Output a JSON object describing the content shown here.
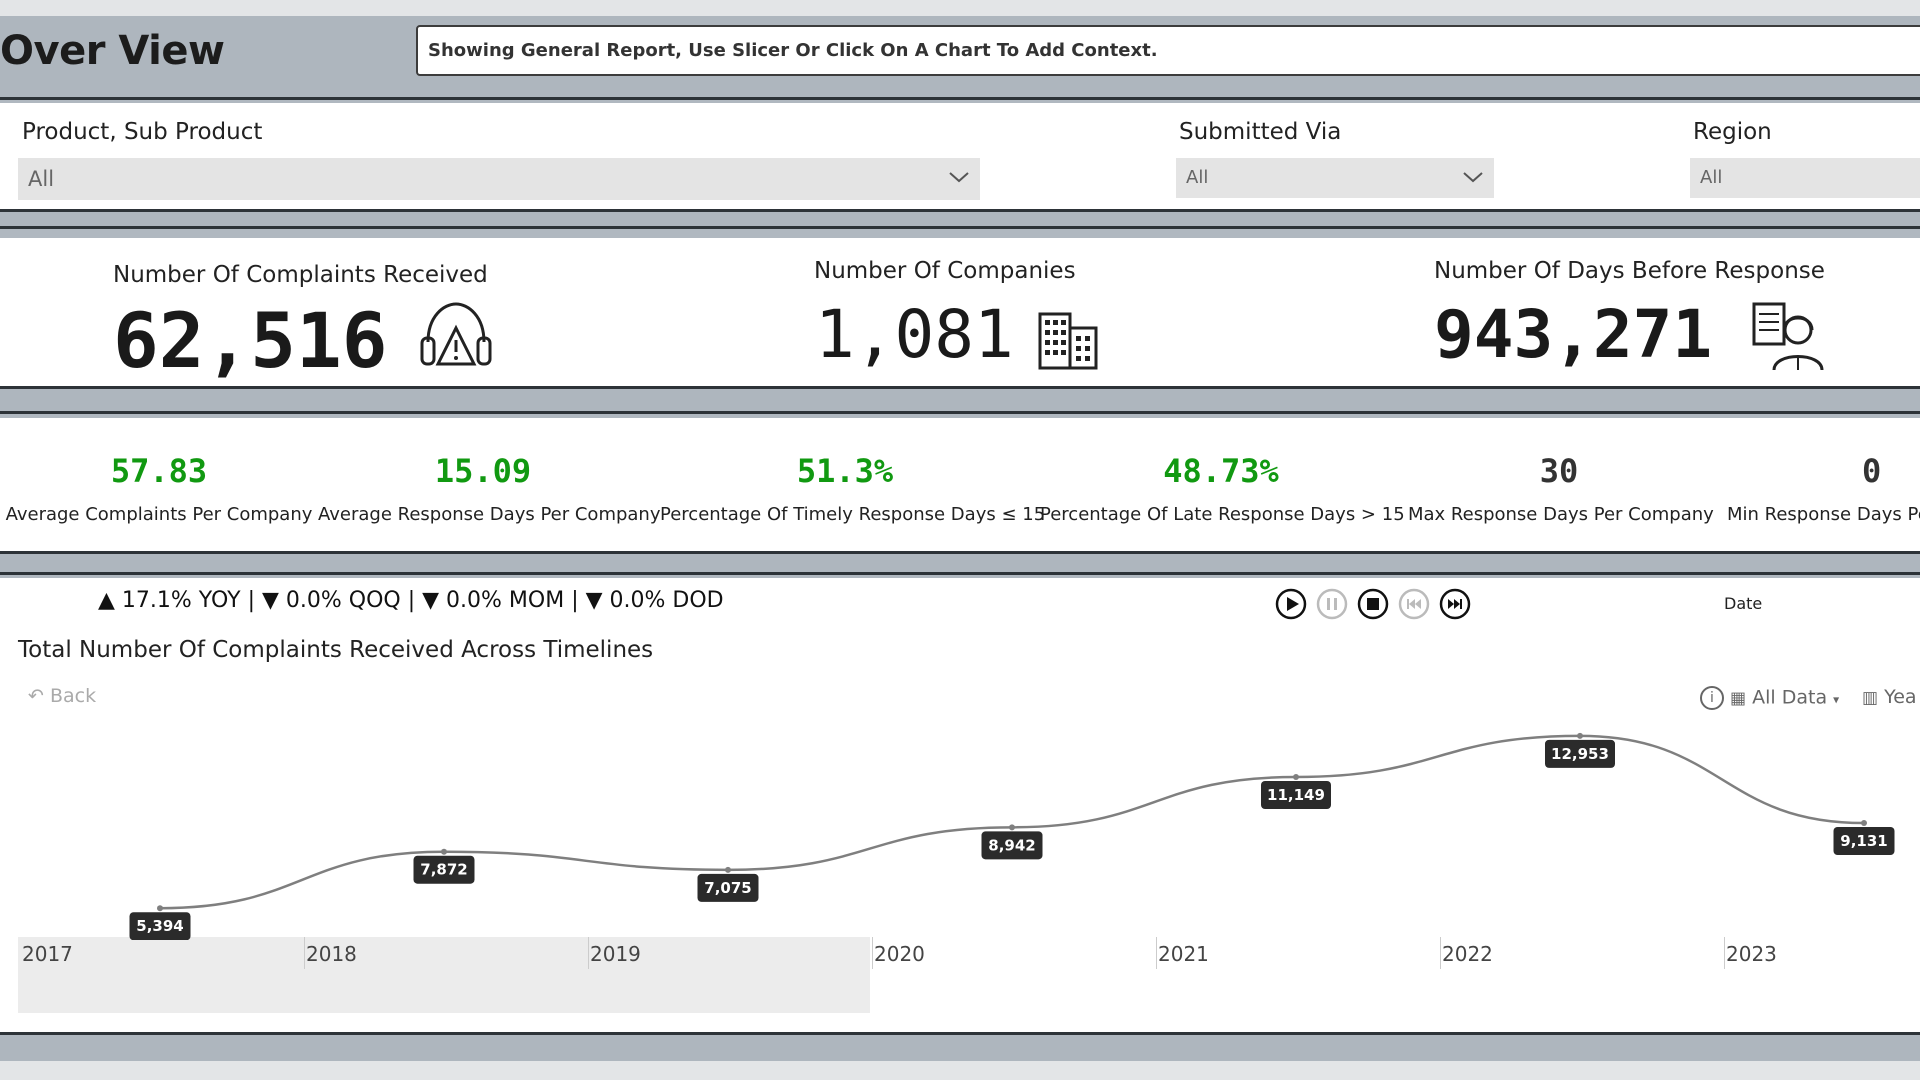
{
  "header": {
    "title": "Over View",
    "context_message": "Showing General Report, Use Slicer Or Click On A Chart To Add Context."
  },
  "slicers": [
    {
      "label": "Product, Sub Product",
      "value": "All"
    },
    {
      "label": "Submitted Via",
      "value": "All"
    },
    {
      "label": "Region",
      "value": "All"
    }
  ],
  "kpis": [
    {
      "label": "Number Of Complaints Received",
      "value": "62,516",
      "icon": "headset-warning-icon"
    },
    {
      "label": "Number Of Companies",
      "value": "1,081",
      "icon": "building-icon"
    },
    {
      "label": "Number Of Days Before Response",
      "value": "943,271",
      "icon": "support-agent-icon"
    }
  ],
  "metrics": [
    {
      "value": "57.83",
      "label": "Average Complaints Per Company",
      "color": "#119911"
    },
    {
      "value": "15.09",
      "label": "Average Response Days Per Company",
      "color": "#119911"
    },
    {
      "value": "51.3%",
      "label": "Percentage Of Timely Response Days ≤ 15",
      "color": "#119911"
    },
    {
      "value": "48.73%",
      "label": "Percentage Of Late Response Days > 15",
      "color": "#119911"
    },
    {
      "value": "30",
      "label": "Max Response Days Per Company",
      "color": "#333333"
    },
    {
      "value": "0",
      "label": "Min Response Days Pe",
      "color": "#333333"
    }
  ],
  "timeline": {
    "delta_text": "▲ 17.1% YOY | ▼ 0.0% QOQ | ▼ 0.0% MOM | ▼ 0.0% DOD",
    "date_label": "Date",
    "back_label": "Back",
    "all_data_label": "All Data",
    "period_label": "Yea",
    "controls": [
      "play-icon",
      "pause-icon",
      "stop-icon",
      "skip-back-icon",
      "skip-forward-icon"
    ]
  },
  "chart_data": {
    "type": "line",
    "title": "Total Number Of Complaints Received Across Timelines",
    "x": [
      "2017",
      "2018",
      "2019",
      "2020",
      "2021",
      "2022",
      "2023"
    ],
    "values": [
      5394,
      7872,
      7075,
      8942,
      11149,
      12953,
      9131
    ],
    "labels": [
      "5,394",
      "7,872",
      "7,075",
      "8,942",
      "11,149",
      "12,953",
      "9,131"
    ],
    "xlabel": "",
    "ylabel": "",
    "ylim": [
      0,
      14000
    ],
    "grid": false,
    "legend": "none",
    "line_color": "#7f7f7f",
    "label_bg": "#2b2b2b"
  }
}
